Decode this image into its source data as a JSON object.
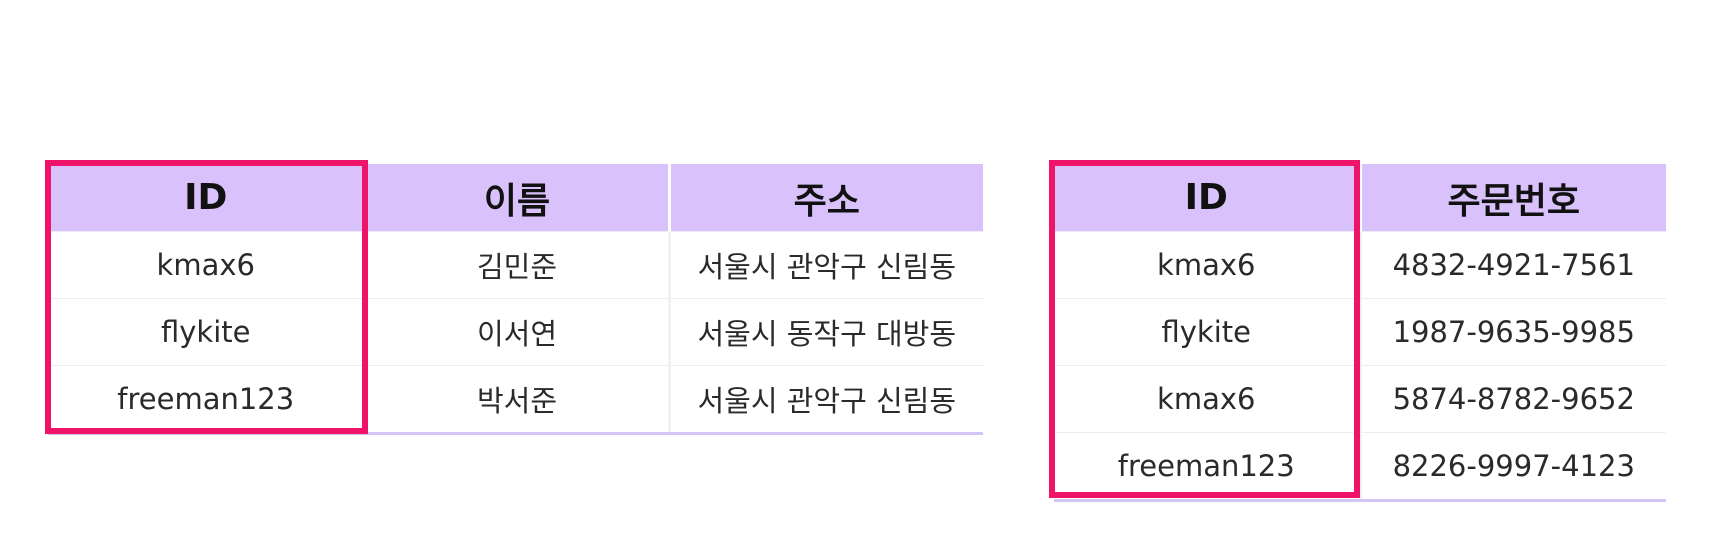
{
  "members_table": {
    "headers": [
      "ID",
      "이름",
      "주소"
    ],
    "rows": [
      [
        "kmax6",
        "김민준",
        "서울시 관악구 신림동"
      ],
      [
        "flykite",
        "이서연",
        "서울시 동작구 대방동"
      ],
      [
        "freeman123",
        "박서준",
        "서울시 관악구 신림동"
      ]
    ]
  },
  "orders_table": {
    "headers": [
      "ID",
      "주문번호"
    ],
    "rows": [
      [
        "kmax6",
        "4832-4921-7561"
      ],
      [
        "flykite",
        "1987-9635-9985"
      ],
      [
        "kmax6",
        "5874-8782-9652"
      ],
      [
        "freeman123",
        "8226-9997-4123"
      ]
    ]
  },
  "colors": {
    "header_bg": "#d9c2fb",
    "highlight": "#f0136a",
    "bottom_rule": "#d4c6f4"
  }
}
